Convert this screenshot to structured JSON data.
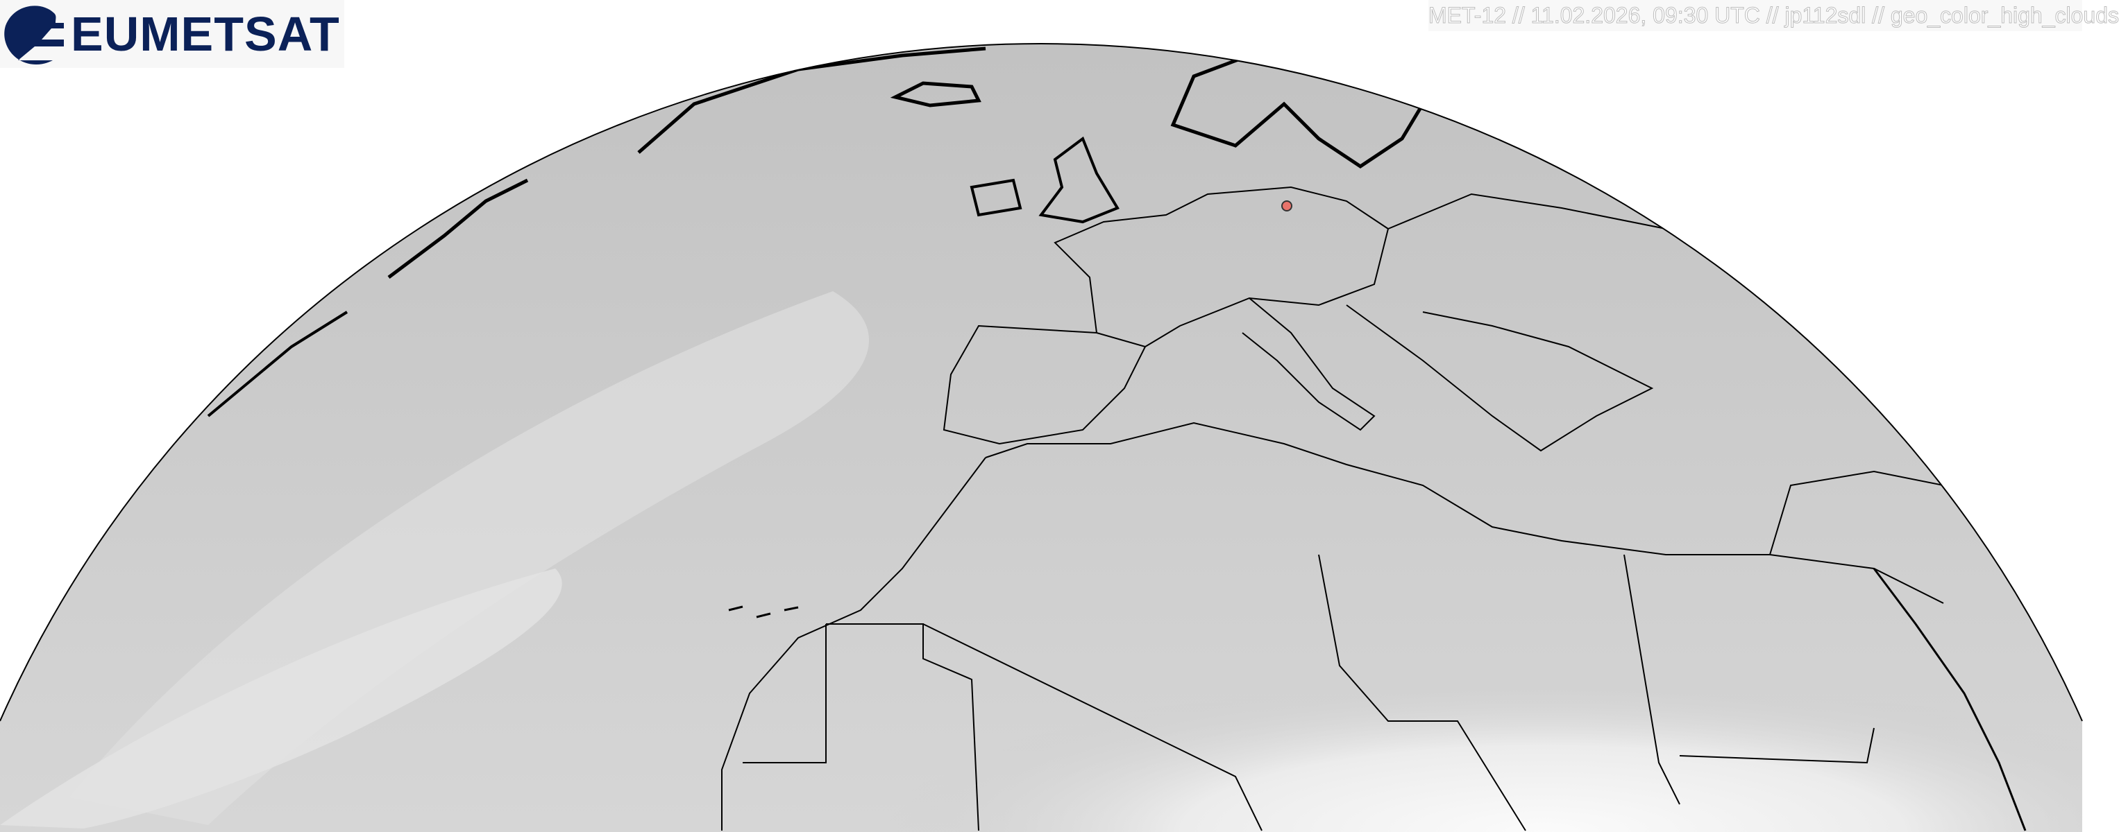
{
  "logo": {
    "text": "EUMETSAT",
    "color": "#0b2158"
  },
  "caption": {
    "text": "MET-12 // 11.02.2026, 09:30 UTC // jp112sdl // geo_color_high_clouds"
  },
  "map": {
    "projection": "geostationary full-disk crop",
    "colors": {
      "clouds_land": "#c9c9c9",
      "desert": "#f4f4f4",
      "borders": "#000000",
      "marker": "#e8736b"
    },
    "marker": {
      "icon": "location-dot-icon"
    }
  }
}
